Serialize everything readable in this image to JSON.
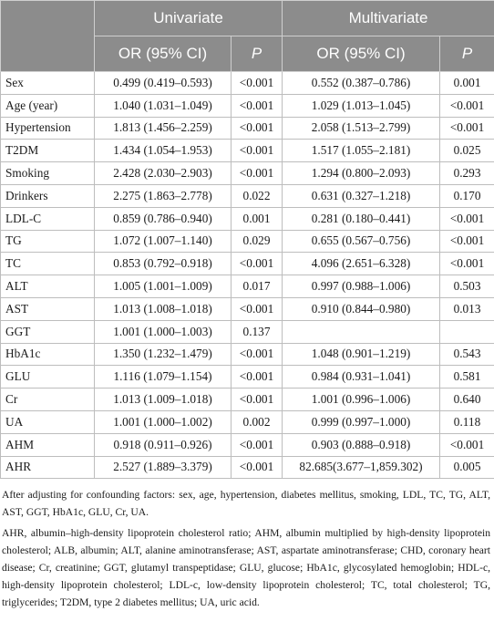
{
  "header": {
    "univariate": "Univariate",
    "multivariate": "Multivariate",
    "or_ci": "OR (95% CI)",
    "p": "P"
  },
  "rows": [
    {
      "var": "Sex",
      "uni_or": "0.499 (0.419–0.593)",
      "uni_p": "<0.001",
      "multi_or": "0.552 (0.387–0.786)",
      "multi_p": "0.001"
    },
    {
      "var": "Age (year)",
      "uni_or": "1.040 (1.031–1.049)",
      "uni_p": "<0.001",
      "multi_or": "1.029 (1.013–1.045)",
      "multi_p": "<0.001"
    },
    {
      "var": "Hypertension",
      "uni_or": "1.813 (1.456–2.259)",
      "uni_p": "<0.001",
      "multi_or": "2.058 (1.513–2.799)",
      "multi_p": "<0.001"
    },
    {
      "var": "T2DM",
      "uni_or": "1.434 (1.054–1.953)",
      "uni_p": "<0.001",
      "multi_or": "1.517 (1.055–2.181)",
      "multi_p": "0.025"
    },
    {
      "var": "Smoking",
      "uni_or": "2.428 (2.030–2.903)",
      "uni_p": "<0.001",
      "multi_or": "1.294 (0.800–2.093)",
      "multi_p": "0.293"
    },
    {
      "var": "Drinkers",
      "uni_or": "2.275 (1.863–2.778)",
      "uni_p": "0.022",
      "multi_or": "0.631 (0.327–1.218)",
      "multi_p": "0.170"
    },
    {
      "var": "LDL-C",
      "uni_or": "0.859 (0.786–0.940)",
      "uni_p": "0.001",
      "multi_or": "0.281 (0.180–0.441)",
      "multi_p": "<0.001"
    },
    {
      "var": "TG",
      "uni_or": "1.072 (1.007–1.140)",
      "uni_p": "0.029",
      "multi_or": "0.655 (0.567–0.756)",
      "multi_p": "<0.001"
    },
    {
      "var": "TC",
      "uni_or": "0.853 (0.792–0.918)",
      "uni_p": "<0.001",
      "multi_or": "4.096 (2.651–6.328)",
      "multi_p": "<0.001"
    },
    {
      "var": "ALT",
      "uni_or": "1.005 (1.001–1.009)",
      "uni_p": "0.017",
      "multi_or": "0.997 (0.988–1.006)",
      "multi_p": "0.503"
    },
    {
      "var": "AST",
      "uni_or": "1.013 (1.008–1.018)",
      "uni_p": "<0.001",
      "multi_or": "0.910 (0.844–0.980)",
      "multi_p": "0.013"
    },
    {
      "var": "GGT",
      "uni_or": "1.001 (1.000–1.003)",
      "uni_p": "0.137",
      "multi_or": "",
      "multi_p": ""
    },
    {
      "var": "HbA1c",
      "uni_or": "1.350 (1.232–1.479)",
      "uni_p": "<0.001",
      "multi_or": "1.048 (0.901–1.219)",
      "multi_p": "0.543"
    },
    {
      "var": "GLU",
      "uni_or": "1.116 (1.079–1.154)",
      "uni_p": "<0.001",
      "multi_or": "0.984 (0.931–1.041)",
      "multi_p": "0.581"
    },
    {
      "var": "Cr",
      "uni_or": "1.013 (1.009–1.018)",
      "uni_p": "<0.001",
      "multi_or": "1.001 (0.996–1.006)",
      "multi_p": "0.640"
    },
    {
      "var": "UA",
      "uni_or": "1.001 (1.000–1.002)",
      "uni_p": "0.002",
      "multi_or": "0.999 (0.997–1.000)",
      "multi_p": "0.118"
    },
    {
      "var": "AHM",
      "uni_or": "0.918 (0.911–0.926)",
      "uni_p": "<0.001",
      "multi_or": "0.903 (0.888–0.918)",
      "multi_p": "<0.001"
    },
    {
      "var": "AHR",
      "uni_or": "2.527 (1.889–3.379)",
      "uni_p": "<0.001",
      "multi_or": "82.685(3.677–1,859.302)",
      "multi_p": "0.005"
    }
  ],
  "footnotes": {
    "adjusting": "After adjusting for confounding factors: sex, age, hypertension, diabetes mellitus, smoking, LDL, TC, TG, ALT, AST, GGT, HbA1c, GLU, Cr, UA.",
    "abbreviations": "AHR, albumin–high-density lipoprotein cholesterol ratio; AHM, albumin multiplied by high-density lipoprotein cholesterol; ALB, albumin; ALT, alanine aminotransferase; AST, aspartate aminotransferase; CHD, coronary heart disease; Cr, creatinine; GGT, glutamyl transpeptidase; GLU, glucose; HbA1c, glycosylated hemoglobin; HDL-c, high-density lipoprotein cholesterol; LDL-c, low-density lipoprotein cholesterol; TC, total cholesterol; TG, triglycerides; T2DM, type 2 diabetes mellitus; UA, uric acid."
  }
}
